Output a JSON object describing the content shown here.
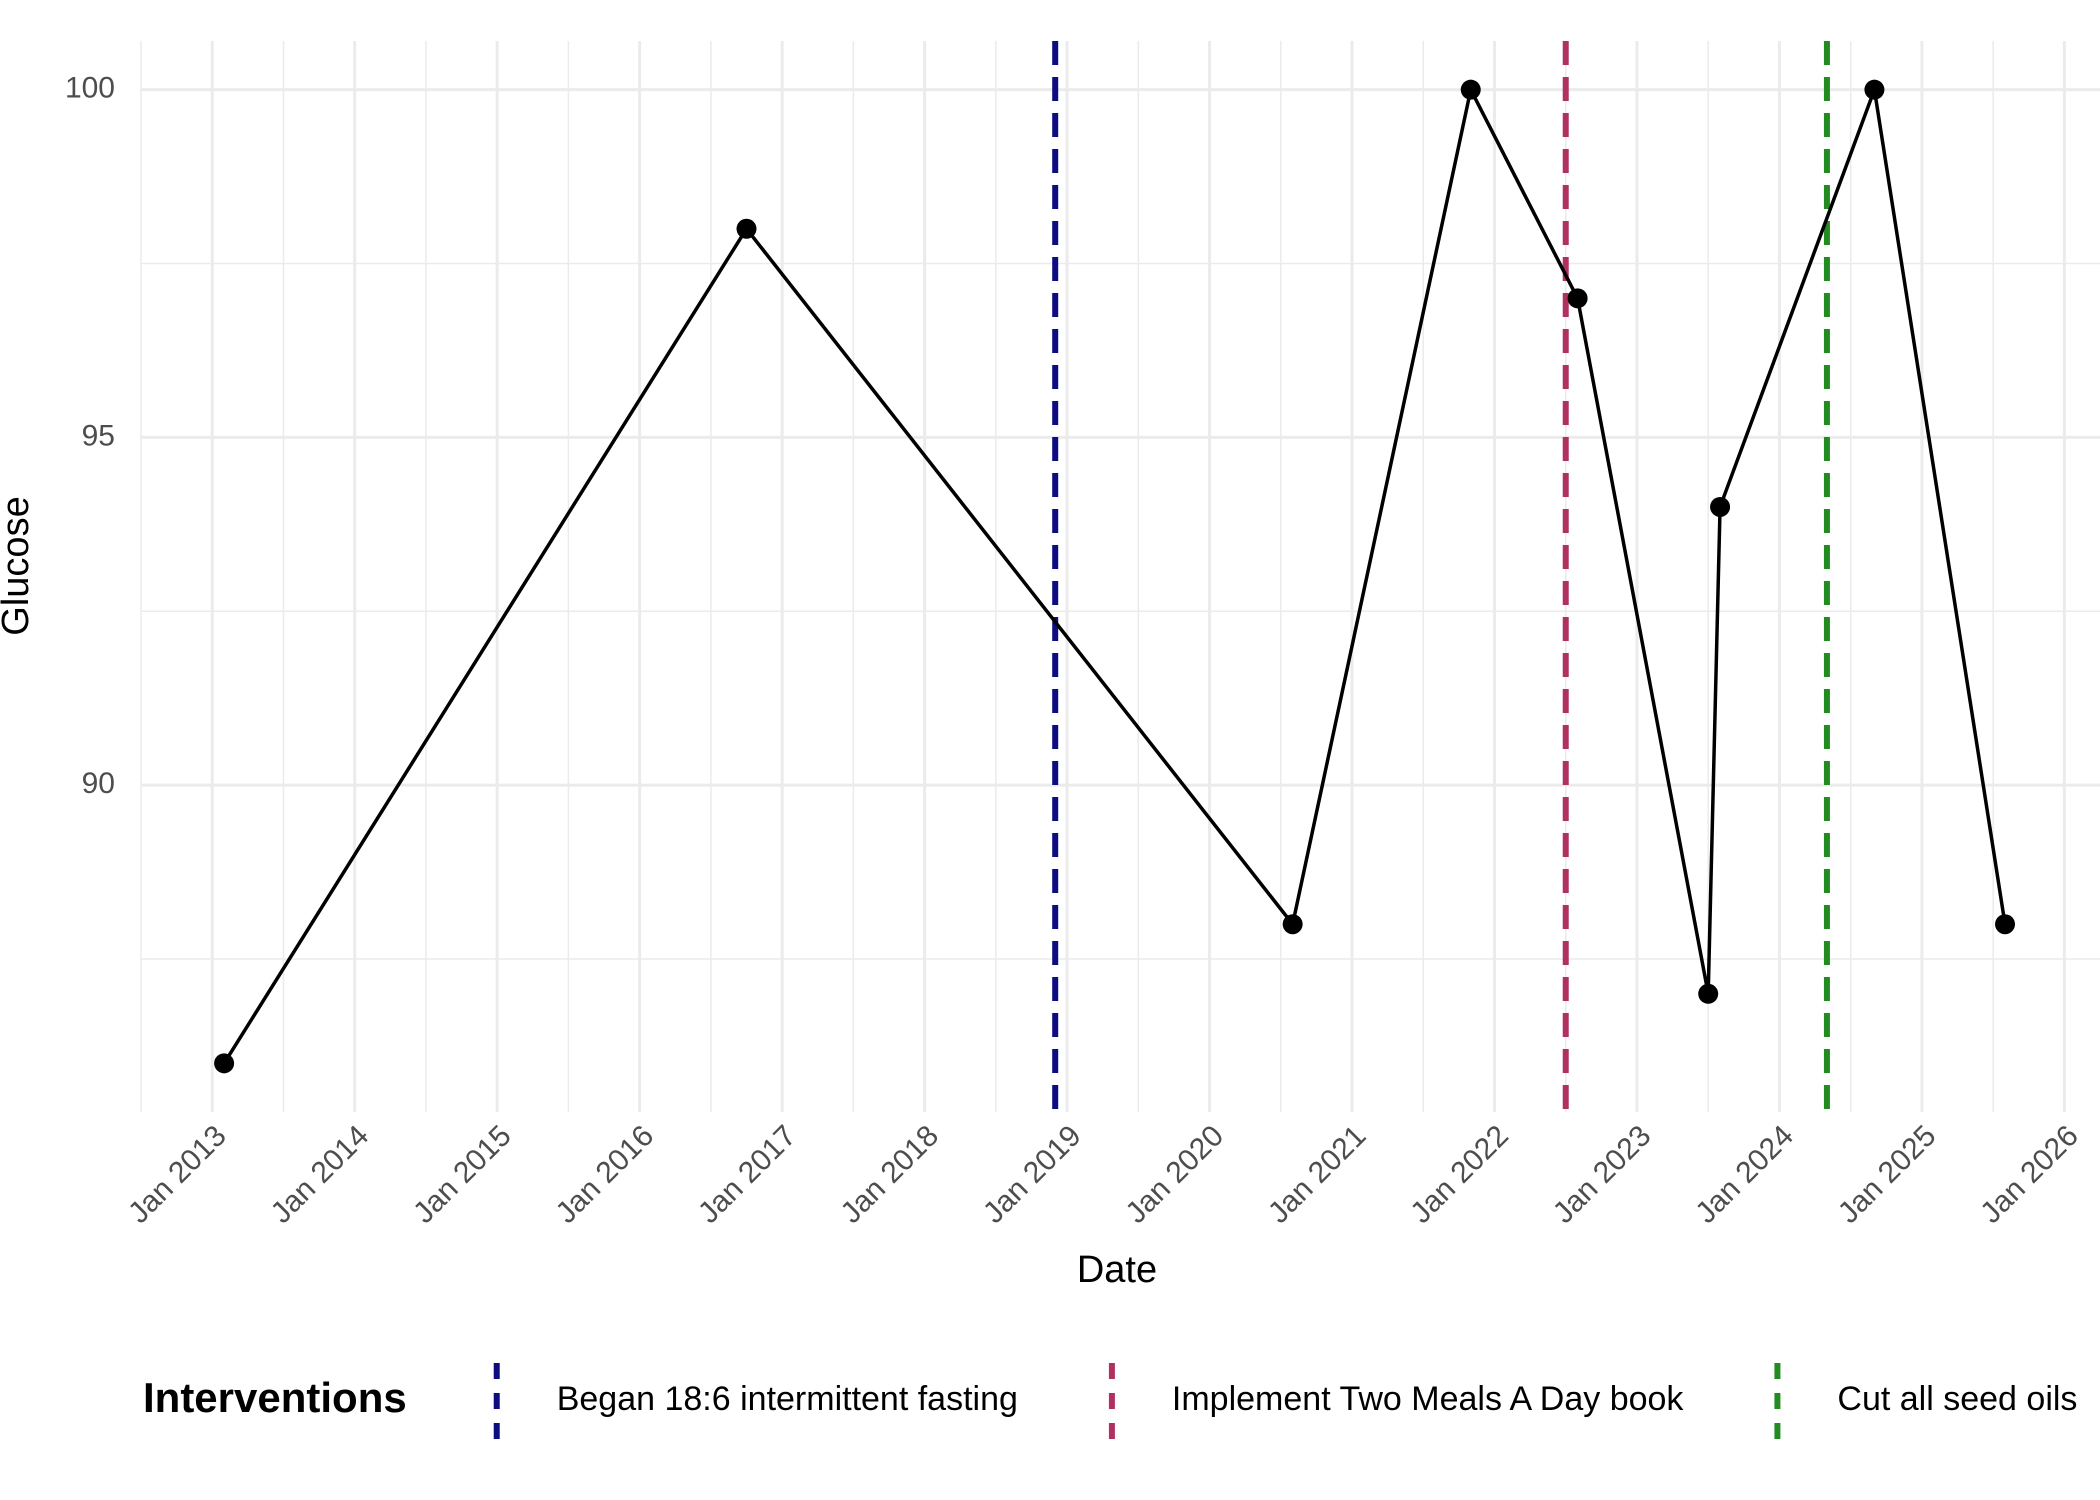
{
  "chart_data": {
    "type": "line",
    "x_label": "Date",
    "y_label": "Glucose",
    "xlim": [
      "2012-07",
      "2026-04"
    ],
    "ylim": [
      85.3,
      100.7
    ],
    "xticks": [
      {
        "value": "2013-01",
        "label": "Jan 2013"
      },
      {
        "value": "2014-01",
        "label": "Jan 2014"
      },
      {
        "value": "2015-01",
        "label": "Jan 2015"
      },
      {
        "value": "2016-01",
        "label": "Jan 2016"
      },
      {
        "value": "2017-01",
        "label": "Jan 2017"
      },
      {
        "value": "2018-01",
        "label": "Jan 2018"
      },
      {
        "value": "2019-01",
        "label": "Jan 2019"
      },
      {
        "value": "2020-01",
        "label": "Jan 2020"
      },
      {
        "value": "2021-01",
        "label": "Jan 2021"
      },
      {
        "value": "2022-01",
        "label": "Jan 2022"
      },
      {
        "value": "2023-01",
        "label": "Jan 2023"
      },
      {
        "value": "2024-01",
        "label": "Jan 2024"
      },
      {
        "value": "2025-01",
        "label": "Jan 2025"
      },
      {
        "value": "2026-01",
        "label": "Jan 2026"
      }
    ],
    "yticks": [
      90,
      95,
      100
    ],
    "grid": true,
    "series": [
      {
        "color": "#000000",
        "x": [
          "2013-02",
          "2016-10",
          "2020-08",
          "2021-11",
          "2022-08",
          "2023-07",
          "2023-08",
          "2024-09",
          "2025-08"
        ],
        "values": [
          86,
          98,
          88,
          100,
          97,
          87,
          94,
          100,
          88
        ]
      }
    ],
    "legend_title": "Interventions",
    "legend_position": "bottom",
    "vlines": [
      {
        "name": "Began 18:6 intermittent fasting",
        "color": "#0d0d80",
        "x": "2018-12"
      },
      {
        "name": "Implement Two Meals A Day book",
        "color": "#b03060",
        "x": "2022-07"
      },
      {
        "name": "Cut all seed oils",
        "color": "#228b22",
        "x": "2024-05"
      }
    ]
  }
}
